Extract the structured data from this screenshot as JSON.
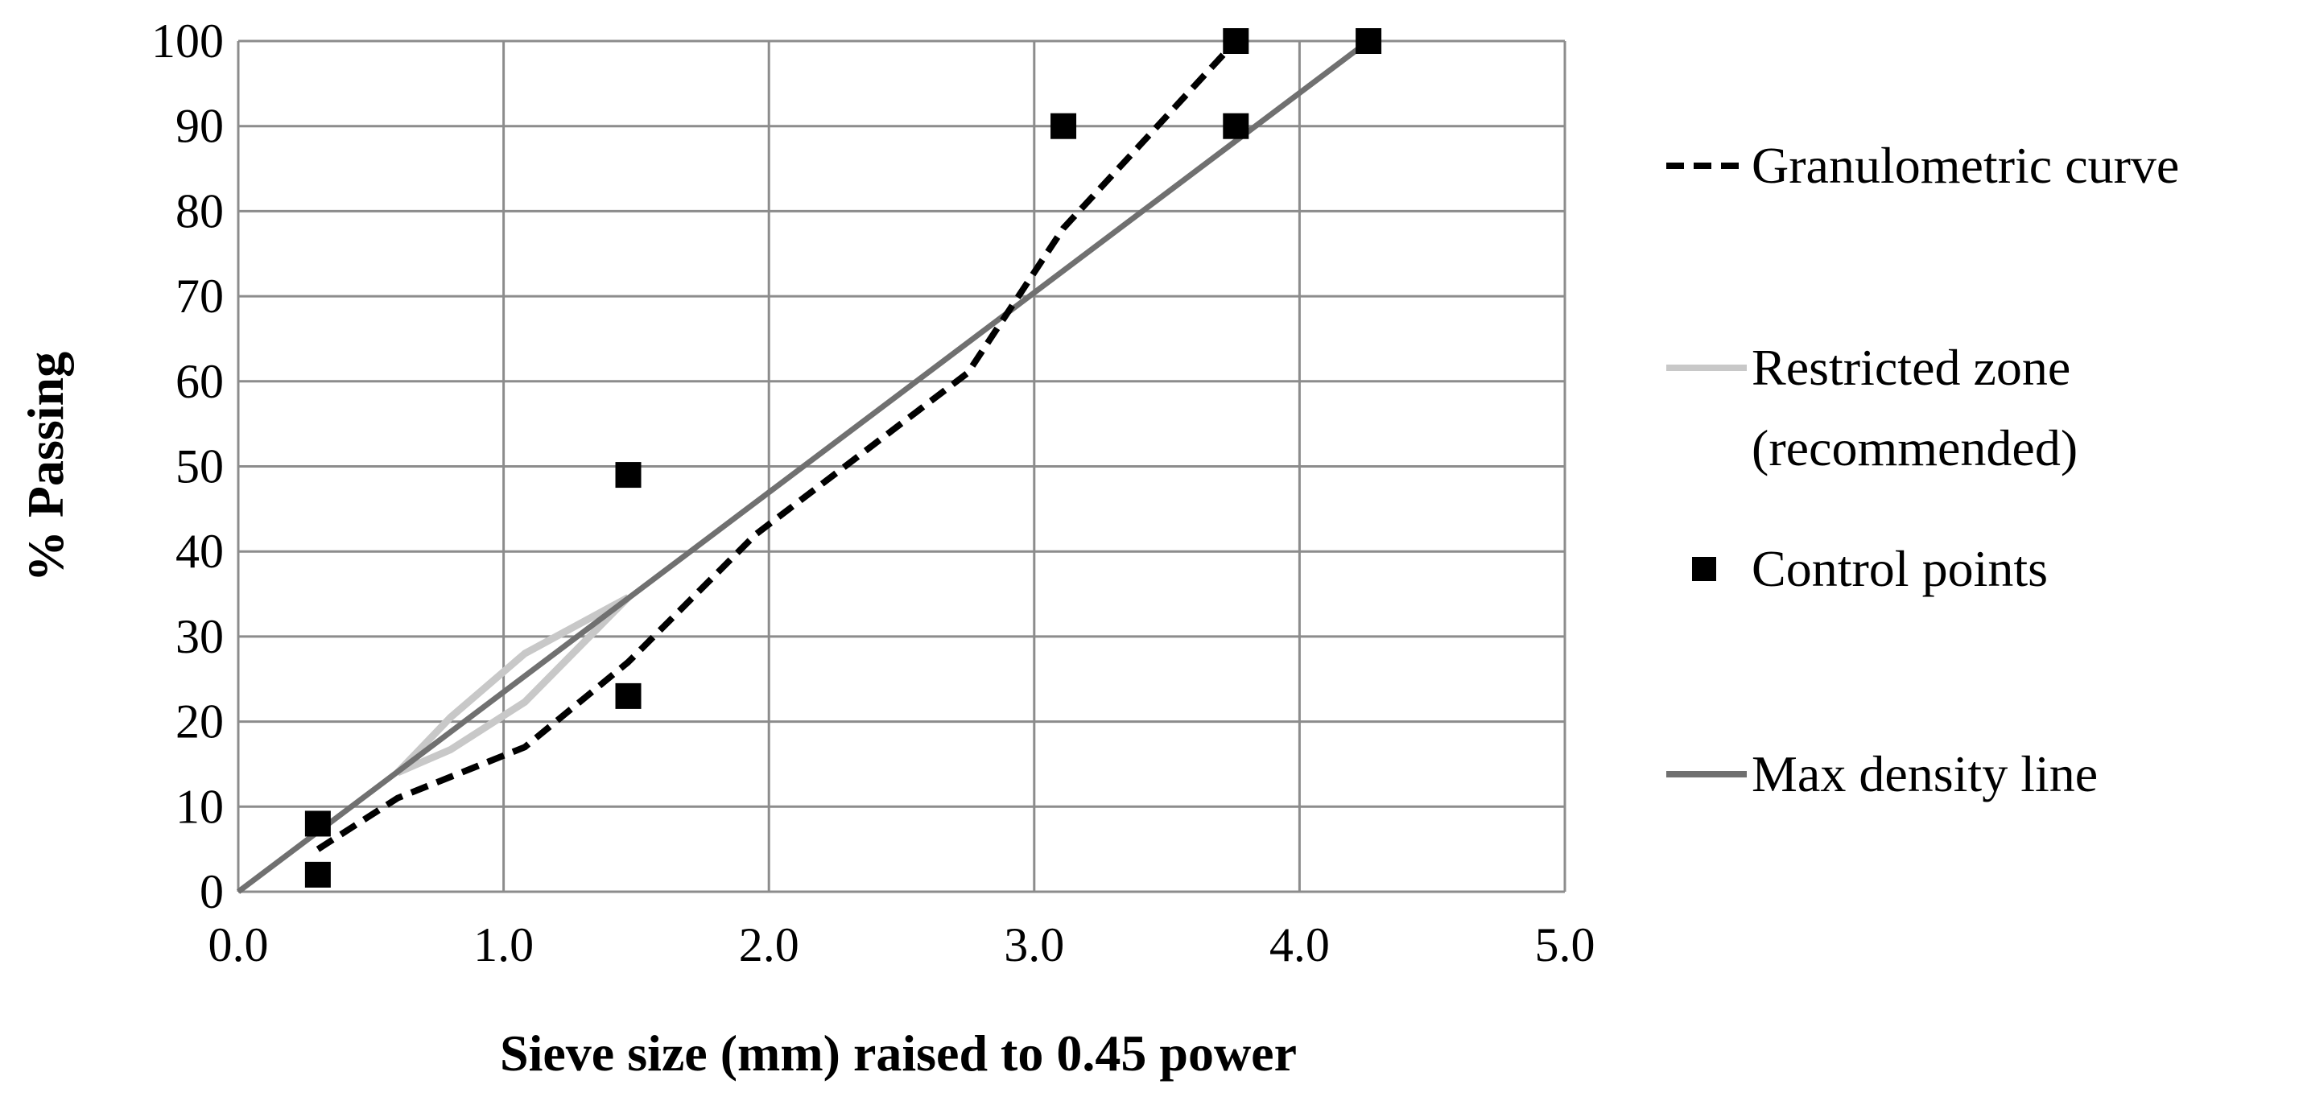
{
  "chart_data": {
    "type": "line",
    "title": "",
    "xlabel": "Sieve size (mm) raised to 0.45 power",
    "ylabel": "% Passing",
    "xlim": [
      0,
      5
    ],
    "ylim": [
      0,
      100
    ],
    "x_ticks": [
      "0.0",
      "1.0",
      "2.0",
      "3.0",
      "4.0",
      "5.0"
    ],
    "y_ticks": [
      "0",
      "10",
      "20",
      "30",
      "40",
      "50",
      "60",
      "70",
      "80",
      "90",
      "100"
    ],
    "grid": true,
    "legend_position": "right",
    "series": [
      {
        "name": "Granulometric curve",
        "style": "dashed",
        "color": "#000000",
        "points": [
          [
            0.3,
            5
          ],
          [
            0.6,
            11
          ],
          [
            1.08,
            17
          ],
          [
            1.47,
            27
          ],
          [
            1.95,
            42
          ],
          [
            2.75,
            61
          ],
          [
            3.11,
            78
          ],
          [
            3.76,
            100
          ]
        ]
      },
      {
        "name": "Restricted zone",
        "name_line2": "(recommended)",
        "style": "solid",
        "color": "#c8c8c8",
        "points_upper": [
          [
            0.6,
            14
          ],
          [
            0.8,
            20.5
          ],
          [
            1.08,
            28
          ],
          [
            1.47,
            34.6
          ]
        ],
        "points_lower": [
          [
            0.6,
            14
          ],
          [
            0.8,
            16.7
          ],
          [
            1.08,
            22.3
          ],
          [
            1.47,
            34.6
          ]
        ]
      },
      {
        "name": "Control points",
        "style": "marker",
        "color": "#000000",
        "points": [
          [
            0.3,
            2
          ],
          [
            0.3,
            8
          ],
          [
            1.47,
            23
          ],
          [
            1.47,
            49
          ],
          [
            3.11,
            90
          ],
          [
            3.76,
            90
          ],
          [
            3.76,
            100
          ],
          [
            4.26,
            100
          ]
        ]
      },
      {
        "name": "Max density line",
        "style": "solid",
        "color": "#707070",
        "points": [
          [
            0,
            0
          ],
          [
            4.26,
            100
          ]
        ]
      }
    ]
  }
}
